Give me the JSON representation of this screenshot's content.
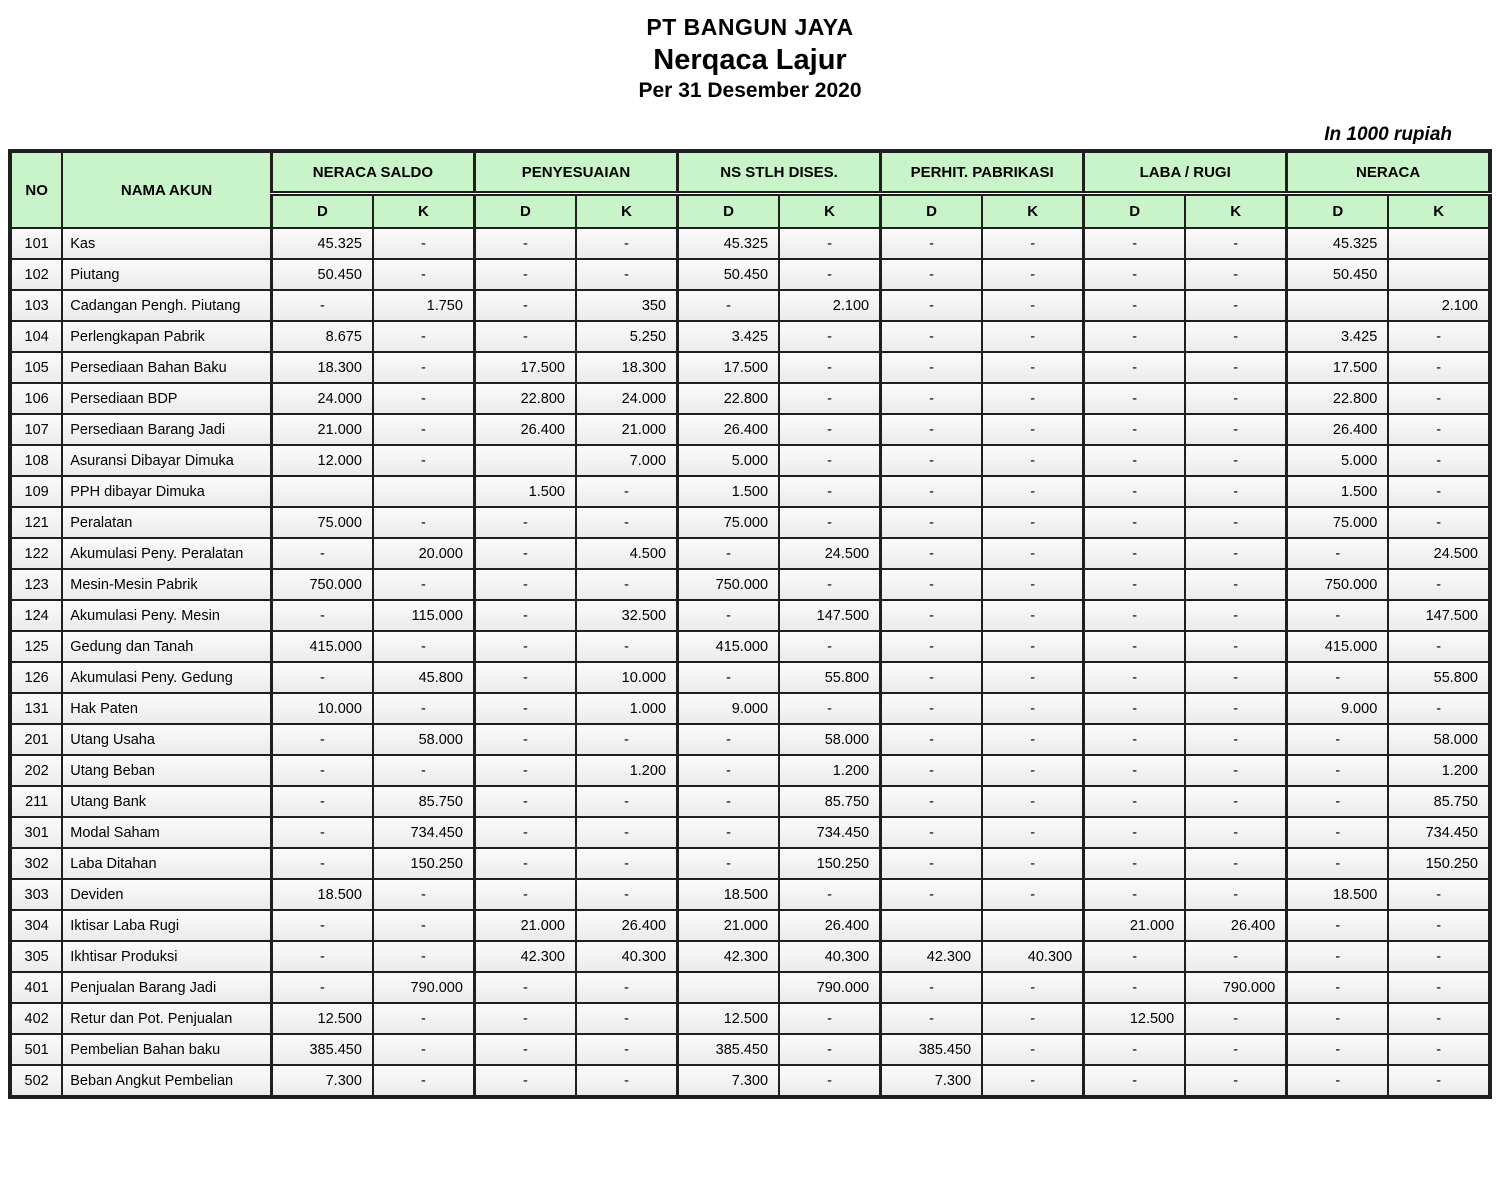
{
  "title": {
    "company": "PT BANGUN JAYA",
    "report": "Nerqaca Lajur",
    "period": "Per 31 Desember 2020"
  },
  "unit_note": "In 1000 rupiah",
  "colors": {
    "header_green": "#c9f4c9",
    "row_fill": "#ededed",
    "border": "#1f1f1f"
  },
  "table": {
    "headers": {
      "no": "NO",
      "account": "NAMA AKUN",
      "groups": [
        "NERACA SALDO",
        "PENYESUAIAN",
        "NS STLH DISES.",
        "PERHIT. PABRIKASI",
        "LABA / RUGI",
        "NERACA"
      ],
      "debit_label": "D",
      "credit_label": "K"
    },
    "rows": [
      {
        "no": "101",
        "name": "Kas",
        "values": [
          "45.325",
          "-",
          "-",
          "-",
          "45.325",
          "-",
          "-",
          "-",
          "-",
          "-",
          "45.325",
          ""
        ]
      },
      {
        "no": "102",
        "name": "Piutang",
        "values": [
          "50.450",
          "-",
          "-",
          "-",
          "50.450",
          "-",
          "-",
          "-",
          "-",
          "-",
          "50.450",
          ""
        ]
      },
      {
        "no": "103",
        "name": "Cadangan Pengh. Piutang",
        "values": [
          "-",
          "1.750",
          "-",
          "350",
          "-",
          "2.100",
          "-",
          "-",
          "-",
          "-",
          "",
          "2.100"
        ]
      },
      {
        "no": "104",
        "name": "Perlengkapan Pabrik",
        "values": [
          "8.675",
          "-",
          "-",
          "5.250",
          "3.425",
          "-",
          "-",
          "-",
          "-",
          "-",
          "3.425",
          "-"
        ]
      },
      {
        "no": "105",
        "name": "Persediaan Bahan Baku",
        "values": [
          "18.300",
          "-",
          "17.500",
          "18.300",
          "17.500",
          "-",
          "-",
          "-",
          "-",
          "-",
          "17.500",
          "-"
        ]
      },
      {
        "no": "106",
        "name": "Persediaan  BDP",
        "values": [
          "24.000",
          "-",
          "22.800",
          "24.000",
          "22.800",
          "-",
          "-",
          "-",
          "-",
          "-",
          "22.800",
          "-"
        ]
      },
      {
        "no": "107",
        "name": "Persediaan Barang Jadi",
        "values": [
          "21.000",
          "-",
          "26.400",
          "21.000",
          "26.400",
          "-",
          "-",
          "-",
          "-",
          "-",
          "26.400",
          "-"
        ]
      },
      {
        "no": "108",
        "name": "Asuransi Dibayar Dimuka",
        "values": [
          "12.000",
          "-",
          "",
          "7.000",
          "5.000",
          "-",
          "-",
          "-",
          "-",
          "-",
          "5.000",
          "-"
        ]
      },
      {
        "no": "109",
        "name": "PPH dibayar Dimuka",
        "values": [
          "",
          "",
          "1.500",
          "-",
          "1.500",
          "-",
          "-",
          "-",
          "-",
          "-",
          "1.500",
          "-"
        ]
      },
      {
        "no": "121",
        "name": "Peralatan",
        "values": [
          "75.000",
          "-",
          "-",
          "-",
          "75.000",
          "-",
          "-",
          "-",
          "-",
          "-",
          "75.000",
          "-"
        ]
      },
      {
        "no": "122",
        "name": "Akumulasi Peny. Peralatan",
        "values": [
          "-",
          "20.000",
          "-",
          "4.500",
          "-",
          "24.500",
          "-",
          "-",
          "-",
          "-",
          "-",
          "24.500"
        ]
      },
      {
        "no": "123",
        "name": "Mesin-Mesin Pabrik",
        "values": [
          "750.000",
          "-",
          "-",
          "-",
          "750.000",
          "-",
          "-",
          "-",
          "-",
          "-",
          "750.000",
          "-"
        ]
      },
      {
        "no": "124",
        "name": "Akumulasi Peny. Mesin",
        "values": [
          "-",
          "115.000",
          "-",
          "32.500",
          "-",
          "147.500",
          "-",
          "-",
          "-",
          "-",
          "-",
          "147.500"
        ]
      },
      {
        "no": "125",
        "name": "Gedung dan Tanah",
        "values": [
          "415.000",
          "-",
          "-",
          "-",
          "415.000",
          "-",
          "-",
          "-",
          "-",
          "-",
          "415.000",
          "-"
        ]
      },
      {
        "no": "126",
        "name": "Akumulasi Peny. Gedung",
        "values": [
          "-",
          "45.800",
          "-",
          "10.000",
          "-",
          "55.800",
          "-",
          "-",
          "-",
          "-",
          "-",
          "55.800"
        ]
      },
      {
        "no": "131",
        "name": "Hak Paten",
        "values": [
          "10.000",
          "-",
          "-",
          "1.000",
          "9.000",
          "-",
          "-",
          "-",
          "-",
          "-",
          "9.000",
          "-"
        ]
      },
      {
        "no": "201",
        "name": "Utang Usaha",
        "values": [
          "-",
          "58.000",
          "-",
          "-",
          "-",
          "58.000",
          "-",
          "-",
          "-",
          "-",
          "-",
          "58.000"
        ]
      },
      {
        "no": "202",
        "name": "Utang Beban",
        "values": [
          "-",
          "-",
          "-",
          "1.200",
          "-",
          "1.200",
          "-",
          "-",
          "-",
          "-",
          "-",
          "1.200"
        ]
      },
      {
        "no": "211",
        "name": "Utang Bank",
        "values": [
          "-",
          "85.750",
          "-",
          "-",
          "-",
          "85.750",
          "-",
          "-",
          "-",
          "-",
          "-",
          "85.750"
        ]
      },
      {
        "no": "301",
        "name": "Modal Saham",
        "values": [
          "-",
          "734.450",
          "-",
          "-",
          "-",
          "734.450",
          "-",
          "-",
          "-",
          "-",
          "-",
          "734.450"
        ]
      },
      {
        "no": "302",
        "name": "Laba Ditahan",
        "values": [
          "-",
          "150.250",
          "-",
          "-",
          "-",
          "150.250",
          "-",
          "-",
          "-",
          "-",
          "-",
          "150.250"
        ]
      },
      {
        "no": "303",
        "name": "Deviden",
        "values": [
          "18.500",
          "-",
          "-",
          "-",
          "18.500",
          "-",
          "-",
          "-",
          "-",
          "-",
          "18.500",
          "-"
        ]
      },
      {
        "no": "304",
        "name": "Iktisar Laba Rugi",
        "values": [
          "-",
          "-",
          "21.000",
          "26.400",
          "21.000",
          "26.400",
          "",
          "",
          "21.000",
          "26.400",
          "-",
          "-"
        ]
      },
      {
        "no": "305",
        "name": "Ikhtisar Produksi",
        "values": [
          "-",
          "-",
          "42.300",
          "40.300",
          "42.300",
          "40.300",
          "42.300",
          "40.300",
          "-",
          "-",
          "-",
          "-"
        ]
      },
      {
        "no": "401",
        "name": "Penjualan Barang Jadi",
        "values": [
          "-",
          "790.000",
          "-",
          "-",
          "",
          "790.000",
          "-",
          "-",
          "-",
          "790.000",
          "-",
          "-"
        ]
      },
      {
        "no": "402",
        "name": "Retur dan Pot. Penjualan",
        "values": [
          "12.500",
          "-",
          "-",
          "-",
          "12.500",
          "-",
          "-",
          "-",
          "12.500",
          "-",
          "-",
          "-"
        ]
      },
      {
        "no": "501",
        "name": "Pembelian Bahan baku",
        "values": [
          "385.450",
          "-",
          "-",
          "-",
          "385.450",
          "-",
          "385.450",
          "-",
          "-",
          "-",
          "-",
          "-"
        ]
      },
      {
        "no": "502",
        "name": "Beban Angkut Pembelian",
        "values": [
          "7.300",
          "-",
          "-",
          "-",
          "7.300",
          "-",
          "7.300",
          "-",
          "-",
          "-",
          "-",
          "-"
        ]
      }
    ]
  }
}
